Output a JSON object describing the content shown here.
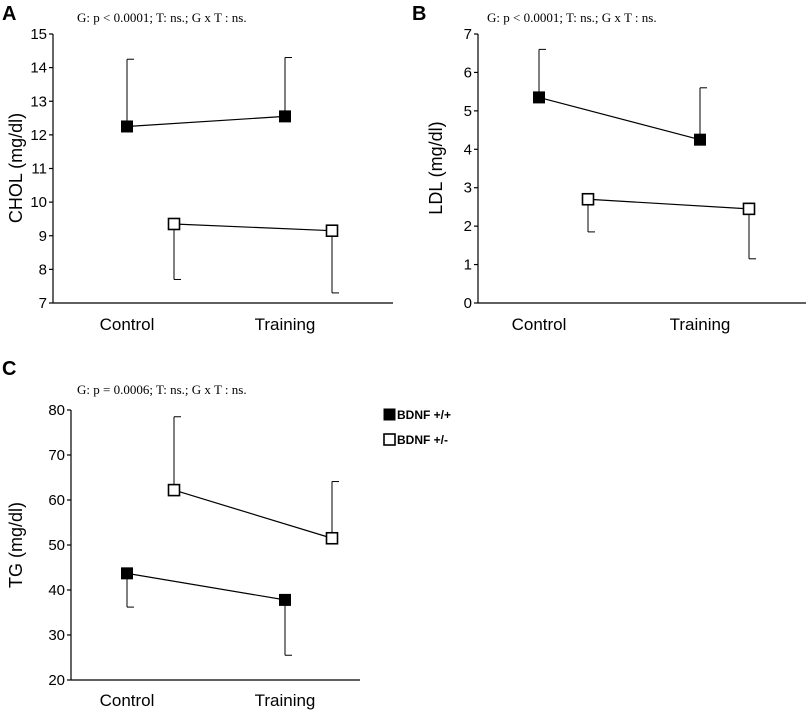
{
  "chart_data": [
    {
      "panel": "A",
      "type": "line",
      "annotation": "G: p < 0.0001;  T: ns.;  G x T : ns.",
      "ylabel": "CHOL (mg/dl)",
      "xlabel": "",
      "categories": [
        "Control",
        "Training"
      ],
      "ylim": [
        7,
        15
      ],
      "yticks": [
        7,
        8,
        9,
        10,
        11,
        12,
        13,
        14,
        15
      ],
      "series": [
        {
          "name": "BDNF +/+",
          "marker": "filled-square",
          "values": [
            12.25,
            12.55
          ],
          "error": [
            2.0,
            1.75
          ],
          "error_dir": "up"
        },
        {
          "name": "BDNF +/-",
          "marker": "open-square",
          "values": [
            9.35,
            9.15
          ],
          "error": [
            1.65,
            1.85
          ],
          "error_dir": "down"
        }
      ]
    },
    {
      "panel": "B",
      "type": "line",
      "annotation": "G: p < 0.0001; T: ns.; G x T : ns.",
      "ylabel": "LDL (mg/dl)",
      "xlabel": "",
      "categories": [
        "Control",
        "Training"
      ],
      "ylim": [
        0,
        7
      ],
      "yticks": [
        0,
        1,
        2,
        3,
        4,
        5,
        6,
        7
      ],
      "series": [
        {
          "name": "BDNF +/+",
          "marker": "filled-square",
          "values": [
            5.35,
            4.25
          ],
          "error": [
            1.25,
            1.35
          ],
          "error_dir": "up"
        },
        {
          "name": "BDNF +/-",
          "marker": "open-square",
          "values": [
            2.7,
            2.45
          ],
          "error": [
            0.85,
            1.3
          ],
          "error_dir": "down"
        }
      ]
    },
    {
      "panel": "C",
      "type": "line",
      "annotation": "G: p = 0.0006;  T: ns.;  G x T : ns.",
      "ylabel": "TG (mg/dl)",
      "xlabel": "",
      "categories": [
        "Control",
        "Training"
      ],
      "ylim": [
        20,
        80
      ],
      "yticks": [
        20,
        30,
        40,
        50,
        60,
        70,
        80
      ],
      "series": [
        {
          "name": "BDNF +/+",
          "marker": "filled-square",
          "values": [
            43.7,
            37.8
          ],
          "error": [
            7.5,
            12.3
          ],
          "error_dir": "down"
        },
        {
          "name": "BDNF +/-",
          "marker": "open-square",
          "values": [
            62.2,
            51.5
          ],
          "error": [
            16.3,
            12.6
          ],
          "error_dir": "up"
        }
      ]
    }
  ],
  "legend": [
    {
      "label": "BDNF +/+",
      "marker": "filled-square"
    },
    {
      "label": "BDNF +/-",
      "marker": "open-square"
    }
  ],
  "colors": {
    "ink": "#000000",
    "background": "#ffffff"
  }
}
